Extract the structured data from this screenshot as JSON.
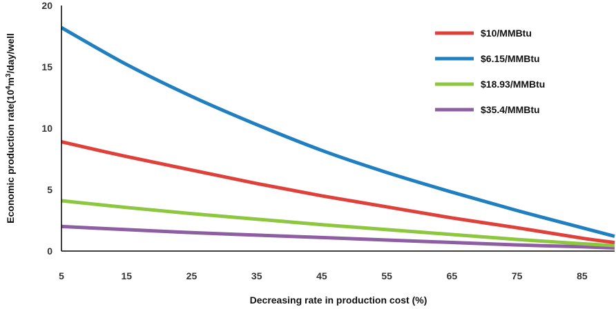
{
  "chart_data": {
    "type": "line",
    "title": "",
    "xlabel": "Decreasing rate in production cost (%)",
    "ylabel_parts": {
      "before": "Economic production rate(10",
      "sup": "4",
      "middle": "m",
      "sup2": "3",
      "after": "/day/well"
    },
    "xlim": [
      5,
      90
    ],
    "ylim": [
      0,
      20
    ],
    "xticks": [
      "5",
      "15",
      "25",
      "35",
      "45",
      "55",
      "65",
      "75",
      "85"
    ],
    "yticks": [
      "0",
      "5",
      "10",
      "15",
      "20"
    ],
    "grid": false,
    "legend_position": "top-right",
    "series": [
      {
        "name": "$10/MMBtu",
        "color": "#e0403a",
        "x": [
          5,
          15,
          25,
          35,
          45,
          55,
          65,
          75,
          85,
          90
        ],
        "y": [
          8.9,
          7.7,
          6.6,
          5.5,
          4.5,
          3.6,
          2.7,
          1.9,
          1.05,
          0.7
        ]
      },
      {
        "name": "$6.15/MMBtu",
        "color": "#1f7fc0",
        "x": [
          5,
          15,
          25,
          35,
          45,
          55,
          65,
          75,
          85,
          90
        ],
        "y": [
          18.2,
          15.2,
          12.6,
          10.3,
          8.2,
          6.4,
          4.8,
          3.3,
          1.9,
          1.2
        ]
      },
      {
        "name": "$18.93/MMBtu",
        "color": "#8dc63f",
        "x": [
          5,
          15,
          25,
          35,
          45,
          55,
          65,
          75,
          85,
          90
        ],
        "y": [
          4.1,
          3.55,
          3.05,
          2.6,
          2.15,
          1.75,
          1.35,
          0.95,
          0.6,
          0.45
        ]
      },
      {
        "name": "$35.4/MMBtu",
        "color": "#8e5ea2",
        "x": [
          5,
          15,
          25,
          35,
          45,
          55,
          65,
          75,
          85,
          90
        ],
        "y": [
          2.0,
          1.75,
          1.5,
          1.3,
          1.1,
          0.9,
          0.7,
          0.5,
          0.35,
          0.25
        ]
      }
    ]
  }
}
